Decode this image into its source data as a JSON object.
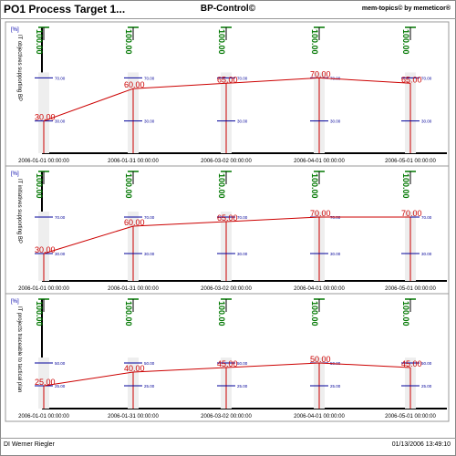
{
  "header": {
    "title": "PO1 Process Target 1...",
    "center": "BP-Control©",
    "right": "mem-topics© by memeticor®"
  },
  "footer": {
    "author": "DI Werner Riegler",
    "timestamp": "01/13/2006 13:49:10"
  },
  "colors": {
    "line": "#cc0000",
    "grid_top": "#007700",
    "band": "#000099",
    "bar": "#eeeeee"
  },
  "chart_data": [
    {
      "type": "line",
      "ylabel": "IT objectives supporting BP",
      "unit": "[%]",
      "x": [
        "2006-01-01 00:00:00",
        "2006-01-31 00:00:00",
        "2006-03-02 00:00:00",
        "2006-04-01 00:00:00",
        "2006-05-01 00:00:00"
      ],
      "values": [
        30.0,
        60.0,
        65.0,
        70.0,
        65.0
      ],
      "value_labels": [
        "30.00",
        "60.00",
        "65.00",
        "70.00",
        "65.00"
      ],
      "max": 100,
      "max_label": "100.00",
      "upper": 70,
      "upper_label": "70.00",
      "lower": 30,
      "lower_label": "30.00"
    },
    {
      "type": "line",
      "ylabel": "IT initiatives supporting BP",
      "unit": "[%]",
      "x": [
        "2006-01-01 00:00:00",
        "2006-01-31 00:00:00",
        "2006-03-02 00:00:00",
        "2006-04-01 00:00:00",
        "2006-05-01 00:00:00"
      ],
      "values": [
        30.0,
        60.0,
        65.0,
        70.0,
        70.0
      ],
      "value_labels": [
        "30.00",
        "60.00",
        "65.00",
        "70.00",
        "70.00"
      ],
      "max": 100,
      "max_label": "100.00",
      "upper": 70,
      "upper_label": "70.00",
      "lower": 30,
      "lower_label": "30.00"
    },
    {
      "type": "line",
      "ylabel": "IT projects traceable to tactical plan",
      "unit": "[%]",
      "x": [
        "2006-01-01 00:00:00",
        "2006-01-31 00:00:00",
        "2006-03-02 00:00:00",
        "2006-04-01 00:00:00",
        "2006-05-01 00:00:00"
      ],
      "values": [
        25.0,
        40.0,
        45.0,
        50.0,
        45.0
      ],
      "value_labels": [
        "25.00",
        "40.00",
        "45.00",
        "50.00",
        "45.00"
      ],
      "max": 100,
      "max_label": "100.00",
      "upper": 50,
      "upper_label": "50.00",
      "lower": 25,
      "lower_label": "25.00"
    }
  ]
}
